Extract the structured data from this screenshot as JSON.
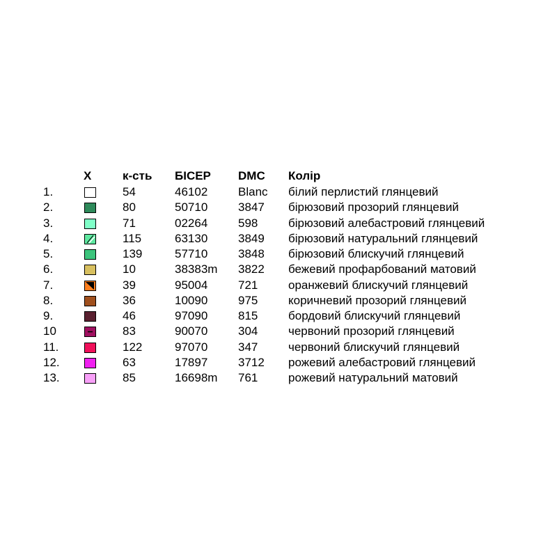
{
  "table": {
    "header": [
      "X",
      "к-сть",
      "БІСЕР",
      "DMC",
      "Колір"
    ],
    "rows": [
      {
        "number": "1.",
        "swatch": "#ffffff",
        "quantity": 54,
        "bead": "46102",
        "dmc": "Blanc",
        "color_name": "білий перлистий глянцевий"
      },
      {
        "number": "2.",
        "swatch": "#2e8a5a",
        "quantity": 80,
        "bead": "50710",
        "dmc": "3847",
        "color_name": "бірюзовий прозорий глянцевий"
      },
      {
        "number": "3.",
        "swatch": "#80ffc8",
        "quantity": 71,
        "bead": "02264",
        "dmc": "598",
        "color_name": "бірюзовий алебастровий глянцевий"
      },
      {
        "number": "4.",
        "swatch": "#5ee8a0",
        "symbol": "slash",
        "quantity": 115,
        "bead": "63130",
        "dmc": "3849",
        "color_name": "бірюзовий натуральний глянцевий"
      },
      {
        "number": "5.",
        "swatch": "#3cc47c",
        "quantity": 139,
        "bead": "57710",
        "dmc": "3848",
        "color_name": "бірюзовий блискучий глянцевий"
      },
      {
        "number": "6.",
        "swatch": "#d8c060",
        "quantity": 10,
        "bead": "38383m",
        "dmc": "3822",
        "color_name": "бежевий профарбований матовий"
      },
      {
        "number": "7.",
        "swatch": "#ff7f1e",
        "symbol": "triangle",
        "quantity": 39,
        "bead": "95004",
        "dmc": "721",
        "color_name": "оранжевий блискучий глянцевий"
      },
      {
        "number": "8.",
        "swatch": "#a0501e",
        "quantity": 36,
        "bead": "10090",
        "dmc": "975",
        "color_name": "коричневий прозорий глянцевий"
      },
      {
        "number": "9.",
        "swatch": "#5a2030",
        "quantity": 46,
        "bead": "97090",
        "dmc": "815",
        "color_name": "бордовий блискучий глянцевий"
      },
      {
        "number": "10",
        "swatch": "#a01060",
        "symbol": "dash",
        "quantity": 83,
        "bead": "90070",
        "dmc": "304",
        "color_name": "червоний прозорий глянцевий"
      },
      {
        "number": "11.",
        "swatch": "#f0105a",
        "quantity": 122,
        "bead": "97070",
        "dmc": "347",
        "color_name": "червоний блискучий глянцевий"
      },
      {
        "number": "12.",
        "swatch": "#f020f0",
        "quantity": 63,
        "bead": "17897",
        "dmc": "3712",
        "color_name": "рожевий алебастровий глянцевий"
      },
      {
        "number": "13.",
        "swatch": "#f8a0f8",
        "quantity": 85,
        "bead": "16698m",
        "dmc": "761",
        "color_name": "рожевий натуральний матовий"
      }
    ]
  }
}
